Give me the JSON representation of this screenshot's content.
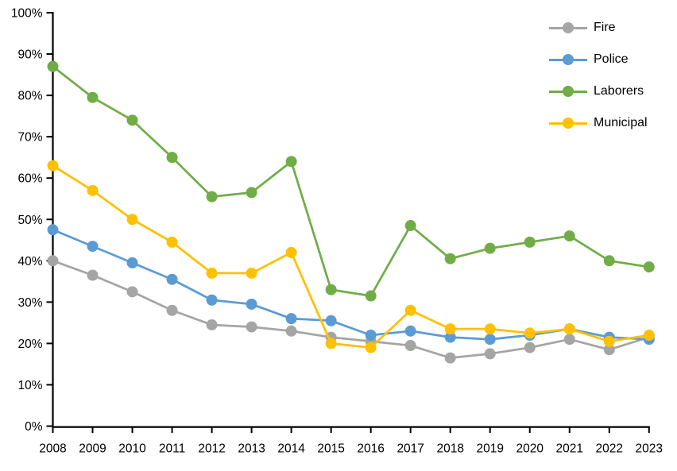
{
  "chart_data": {
    "type": "line",
    "title": "",
    "xlabel": "",
    "ylabel": "",
    "x": [
      "2008",
      "2009",
      "2010",
      "2011",
      "2012",
      "2013",
      "2014",
      "2015",
      "2016",
      "2017",
      "2018",
      "2019",
      "2020",
      "2021",
      "2022",
      "2023"
    ],
    "series": [
      {
        "name": "Fire",
        "color": "#A5A5A5",
        "values": [
          40,
          36.5,
          32.5,
          28,
          24.5,
          24,
          23,
          21.5,
          20.5,
          19.5,
          16.5,
          17.5,
          19,
          21,
          18.5,
          21.5
        ]
      },
      {
        "name": "Police",
        "color": "#5B9BD5",
        "values": [
          47.5,
          43.5,
          39.5,
          35.5,
          30.5,
          29.5,
          26,
          25.5,
          22,
          23,
          21.5,
          21,
          22,
          23.5,
          21.5,
          21
        ]
      },
      {
        "name": "Laborers",
        "color": "#70AD47",
        "values": [
          87,
          79.5,
          74,
          65,
          55.5,
          56.5,
          64,
          33,
          31.5,
          48.5,
          40.5,
          43,
          44.5,
          46,
          40,
          38.5
        ]
      },
      {
        "name": "Municipal",
        "color": "#FFC000",
        "values": [
          63,
          57,
          50,
          44.5,
          37,
          37,
          42,
          20,
          19,
          28,
          23.5,
          23.5,
          22.5,
          23.5,
          20.5,
          22
        ]
      }
    ],
    "ylim": [
      0,
      100
    ],
    "y_tick_step": 10,
    "y_tick_labels": [
      "0%",
      "10%",
      "20%",
      "30%",
      "40%",
      "50%",
      "60%",
      "70%",
      "80%",
      "90%",
      "100%"
    ],
    "grid": false,
    "legend_position": "top-right",
    "axis_color": "#000000",
    "label_color": "#000000"
  }
}
